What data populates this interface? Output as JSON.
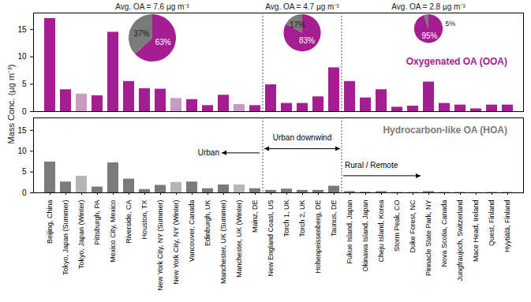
{
  "chart_data": {
    "type": "bar",
    "y_label": "Mass Conc. (µg m⁻³)",
    "categories": [
      "Beijing, China",
      "Tokyo, Japan (Summer)",
      "Tokyo, Japan (Winter)",
      "Pittsburgh, PA",
      "Mexico City, Mexico",
      "Riverside, CA",
      "Houston, TX",
      "New York City, NY (Summer)",
      "New York City, NY (Winter)",
      "Vancouver, Canada",
      "Edinburgh, UK",
      "Manchester, UK (Summer)",
      "Manchester, UK (Winter)",
      "Mainz, DE",
      "New England Coast, US",
      "Torch 1, UK",
      "Torch 2, UK",
      "Hohenpeissenberg, DE",
      "Taunus, DE",
      "Fukue Island, Japan",
      "Okinawa Island, Japan",
      "Cheju Island, Korea",
      "Storm Peak, CO",
      "Duke Forest, NC",
      "Pinnacle State Park, NY",
      "Nova Scotia, Canada",
      "Jungfraujoch, Switzerland",
      "Mace Head, Ireland",
      "Quest, Finland",
      "Hyytiälä, Finland"
    ],
    "series": [
      {
        "name": "Oxygenated OA (OOA)",
        "color": "#a61d91",
        "colors": [
          "#a61d91",
          "#a61d91",
          "#c99ac2",
          "#a61d91",
          "#a61d91",
          "#a61d91",
          "#a61d91",
          "#a61d91",
          "#c99ac2",
          "#a61d91",
          "#a61d91",
          "#a61d91",
          "#c99ac2",
          "#a61d91",
          "#a61d91",
          "#a61d91",
          "#a61d91",
          "#a61d91",
          "#a61d91",
          "#a61d91",
          "#a61d91",
          "#a61d91",
          "#a61d91",
          "#a61d91",
          "#a61d91",
          "#a61d91",
          "#a61d91",
          "#a61d91",
          "#a61d91",
          "#a61d91"
        ],
        "values": [
          17,
          4,
          3.2,
          2.9,
          14.5,
          5.5,
          4.2,
          4.1,
          2.4,
          2.2,
          1.1,
          3.0,
          1.3,
          1.1,
          4.9,
          1.5,
          1.5,
          2.7,
          8.0,
          5.5,
          2.5,
          4.0,
          0.8,
          1.0,
          5.4,
          1.5,
          1.2,
          0.5,
          1.2,
          1.2
        ]
      },
      {
        "name": "Hydrocarbon-like OA (HOA)",
        "color": "#7a7a7a",
        "colors": [
          "#7a7a7a",
          "#7a7a7a",
          "#b5b5b5",
          "#7a7a7a",
          "#7a7a7a",
          "#7a7a7a",
          "#7a7a7a",
          "#7a7a7a",
          "#b5b5b5",
          "#7a7a7a",
          "#7a7a7a",
          "#7a7a7a",
          "#b5b5b5",
          "#7a7a7a",
          "#7a7a7a",
          "#7a7a7a",
          "#7a7a7a",
          "#7a7a7a",
          "#7a7a7a",
          "#7a7a7a",
          "#7a7a7a",
          "#7a7a7a",
          "#7a7a7a",
          "#7a7a7a",
          "#7a7a7a",
          "#7a7a7a",
          "#7a7a7a",
          "#7a7a7a",
          "#7a7a7a",
          "#7a7a7a"
        ],
        "values": [
          7.4,
          2.6,
          4.0,
          1.4,
          7.2,
          3.3,
          0.8,
          1.8,
          2.5,
          2.6,
          1.0,
          1.9,
          1.9,
          1.0,
          0.6,
          0.9,
          0.6,
          0.6,
          1.6,
          0.3,
          0.15,
          0.3,
          0.1,
          0.1,
          0.3,
          0.1,
          0.1,
          0.05,
          0.1,
          0.1
        ]
      }
    ],
    "ylim": [
      0,
      18
    ],
    "yticks": [
      0,
      5,
      10,
      15
    ],
    "groups": [
      {
        "label": "Urban",
        "first": "Beijing, China",
        "last": "Mainz, DE",
        "avg_oa": 7.6,
        "avg_label": "Avg. OA = 7.6 µg m⁻³",
        "pie": {
          "values": [
            63,
            37
          ],
          "value_labels": [
            "63%",
            "37%"
          ]
        }
      },
      {
        "label": "Urban downwind",
        "first": "New England Coast, US",
        "last": "Taunus, DE",
        "avg_oa": 4.7,
        "avg_label": "Avg. OA = 4.7 µg m⁻³",
        "pie": {
          "values": [
            83,
            17
          ],
          "value_labels": [
            "83%",
            "17%"
          ]
        }
      },
      {
        "label": "Rural / Remote",
        "first": "Fukue Island, Japan",
        "last": "Hyytiälä, Finland",
        "avg_oa": 2.8,
        "avg_label": "Avg. OA = 2.8 µg m⁻³",
        "pie": {
          "values": [
            95,
            5
          ],
          "value_labels": [
            "95%",
            "5%"
          ]
        }
      }
    ]
  }
}
